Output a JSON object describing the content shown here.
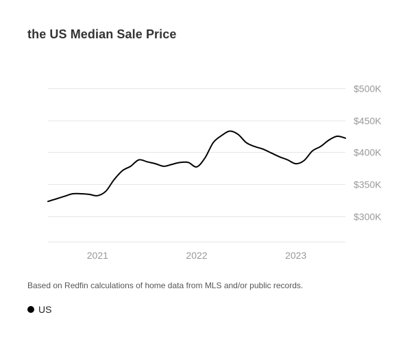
{
  "title": "the US Median Sale Price",
  "footnote": "Based on Redfin calculations of home data from MLS and/or public records.",
  "colors": {
    "line": "#000000",
    "grid": "#e6e6e6",
    "tick_text": "#999999"
  },
  "chart_data": {
    "type": "line",
    "title": "the US Median Sale Price",
    "xlabel": "",
    "ylabel": "",
    "grid": true,
    "legend_position": "bottom-left",
    "y_axis_position": "right",
    "ylim": [
      260000,
      515000
    ],
    "xlim": [
      "2020-07",
      "2023-07"
    ],
    "y_ticks": [
      {
        "value": 300000,
        "label": "$300K"
      },
      {
        "value": 350000,
        "label": "$350K"
      },
      {
        "value": 400000,
        "label": "$400K"
      },
      {
        "value": 450000,
        "label": "$450K"
      },
      {
        "value": 500000,
        "label": "$500K"
      }
    ],
    "x_ticks": [
      {
        "value": "2021-01",
        "label": "2021"
      },
      {
        "value": "2022-01",
        "label": "2022"
      },
      {
        "value": "2023-01",
        "label": "2023"
      }
    ],
    "series": [
      {
        "name": "US",
        "color": "#000000",
        "points": [
          {
            "x": "2020-07",
            "y": 323000
          },
          {
            "x": "2020-08",
            "y": 327000
          },
          {
            "x": "2020-09",
            "y": 331000
          },
          {
            "x": "2020-10",
            "y": 335000
          },
          {
            "x": "2020-11",
            "y": 335000
          },
          {
            "x": "2020-12",
            "y": 334000
          },
          {
            "x": "2021-01",
            "y": 332000
          },
          {
            "x": "2021-02",
            "y": 339000
          },
          {
            "x": "2021-03",
            "y": 357000
          },
          {
            "x": "2021-04",
            "y": 371000
          },
          {
            "x": "2021-05",
            "y": 378000
          },
          {
            "x": "2021-06",
            "y": 388000
          },
          {
            "x": "2021-07",
            "y": 385000
          },
          {
            "x": "2021-08",
            "y": 382000
          },
          {
            "x": "2021-09",
            "y": 378000
          },
          {
            "x": "2021-10",
            "y": 381000
          },
          {
            "x": "2021-11",
            "y": 384000
          },
          {
            "x": "2021-12",
            "y": 384000
          },
          {
            "x": "2022-01",
            "y": 377000
          },
          {
            "x": "2022-02",
            "y": 391000
          },
          {
            "x": "2022-03",
            "y": 415000
          },
          {
            "x": "2022-04",
            "y": 426000
          },
          {
            "x": "2022-05",
            "y": 433000
          },
          {
            "x": "2022-06",
            "y": 428000
          },
          {
            "x": "2022-07",
            "y": 415000
          },
          {
            "x": "2022-08",
            "y": 409000
          },
          {
            "x": "2022-09",
            "y": 405000
          },
          {
            "x": "2022-10",
            "y": 399000
          },
          {
            "x": "2022-11",
            "y": 393000
          },
          {
            "x": "2022-12",
            "y": 388000
          },
          {
            "x": "2023-01",
            "y": 382000
          },
          {
            "x": "2023-02",
            "y": 387000
          },
          {
            "x": "2023-03",
            "y": 402000
          },
          {
            "x": "2023-04",
            "y": 409000
          },
          {
            "x": "2023-05",
            "y": 419000
          },
          {
            "x": "2023-06",
            "y": 425000
          },
          {
            "x": "2023-07",
            "y": 422000
          }
        ]
      }
    ]
  }
}
